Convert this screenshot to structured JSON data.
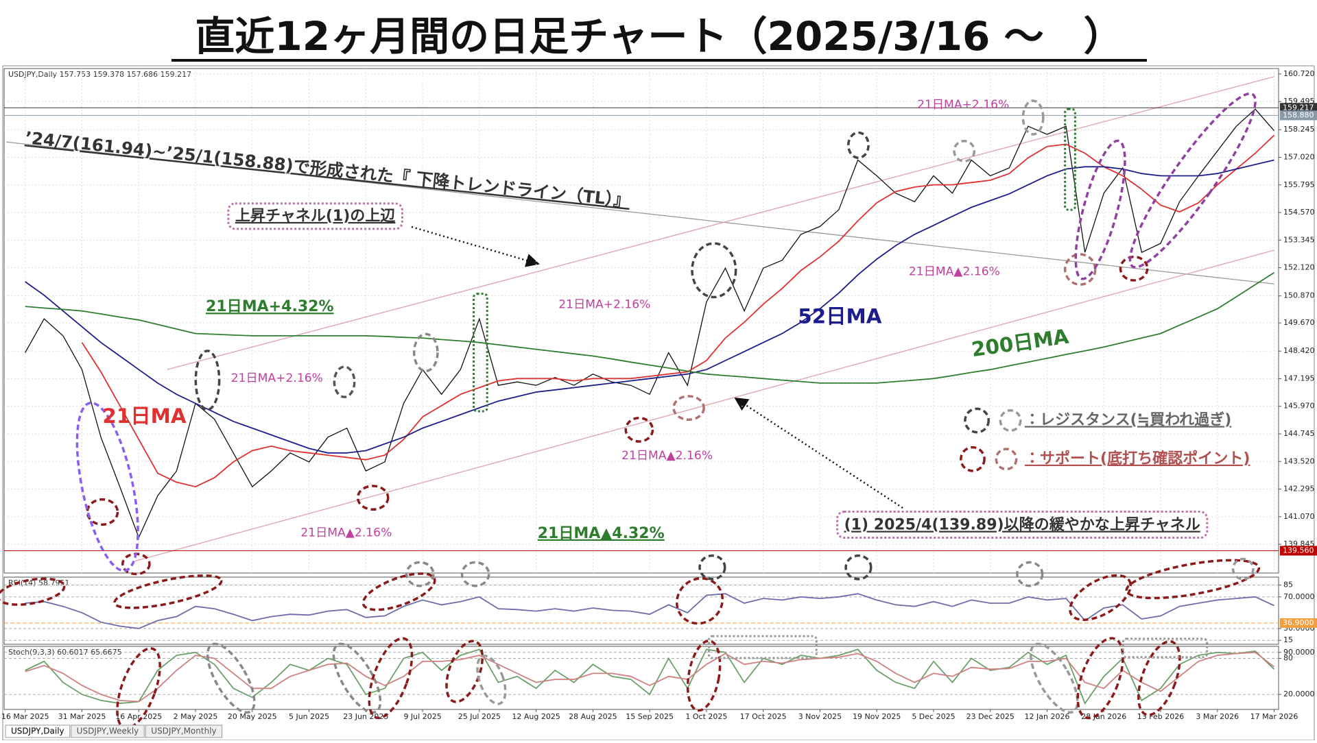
{
  "title": "直近12ヶ月間の日足チャート（2025/3/16 ～　）",
  "tabs": [
    "USDJPY,Daily",
    "USDJPY,Weekly",
    "USDJPY,Monthly"
  ],
  "chart_data": [
    {
      "type": "line",
      "header": "USDJPY,Daily  157.753 159.378 157.686 159.217",
      "categories": [
        "16 Mar 2025",
        null,
        null,
        "31 Mar 2025",
        null,
        null,
        "16 Apr 2025",
        null,
        null,
        "2 May 2025",
        null,
        null,
        "20 May 2025",
        null,
        null,
        "5 Jun 2025",
        null,
        null,
        "23 Jun 2025",
        null,
        null,
        "9 Jul 2025",
        null,
        null,
        "25 Jul 2025",
        null,
        null,
        "12 Aug 2025",
        null,
        null,
        "28 Aug 2025",
        null,
        null,
        "15 Sep 2025",
        null,
        null,
        "1 Oct 2025",
        null,
        null,
        "17 Oct 2025",
        null,
        null,
        "3 Nov 2025",
        null,
        null,
        "19 Nov 2025",
        null,
        null,
        "5 Dec 2025",
        null,
        null,
        "23 Dec 2025",
        null,
        null,
        "12 Jan 2026",
        null,
        null,
        "28 Jan 2026",
        null,
        null,
        "13 Feb 2026",
        null,
        null,
        "3 Mar 2026",
        null,
        null,
        "17 Mar 2026"
      ],
      "series": [
        {
          "color": "#111111",
          "values": [
            148.35,
            149.85,
            149.1,
            147.6,
            144.6,
            142.4,
            140.15,
            142.0,
            143.1,
            146.1,
            145.4,
            143.9,
            142.4,
            143.1,
            143.9,
            143.5,
            144.6,
            145.0,
            143.1,
            143.5,
            146.1,
            147.6,
            146.5,
            147.6,
            149.85,
            146.9,
            147.05,
            146.9,
            147.25,
            146.9,
            147.4,
            147.05,
            146.9,
            146.5,
            148.35,
            146.9,
            150.6,
            152.1,
            150.2,
            152.1,
            152.45,
            153.6,
            153.95,
            154.7,
            156.9,
            156.2,
            155.43,
            155.05,
            156.2,
            155.43,
            156.9,
            156.2,
            156.55,
            158.4,
            158.04,
            158.4,
            152.8,
            155.43,
            156.55,
            152.8,
            153.2,
            155.05,
            156.2,
            157.3,
            158.4,
            159.16,
            158.2
          ]
        },
        {
          "name": "21日MA",
          "color": "#e03030",
          "values": [
            null,
            null,
            null,
            148.8,
            147.5,
            146.0,
            144.5,
            143.0,
            142.6,
            142.4,
            142.8,
            143.5,
            144.0,
            144.2,
            144.0,
            143.9,
            143.8,
            143.7,
            143.6,
            143.8,
            144.5,
            145.5,
            146.0,
            146.5,
            146.8,
            147.1,
            147.2,
            147.2,
            147.2,
            147.1,
            147.2,
            147.2,
            147.2,
            147.3,
            147.4,
            147.5,
            148.0,
            149.0,
            149.7,
            150.5,
            151.2,
            152.0,
            152.6,
            153.3,
            154.2,
            155.0,
            155.5,
            155.7,
            155.8,
            155.8,
            155.9,
            156.0,
            156.3,
            157.0,
            157.5,
            157.6,
            157.2,
            156.6,
            156.2,
            155.6,
            154.9,
            154.6,
            155.0,
            155.8,
            156.5,
            157.2,
            158.0
          ]
        },
        {
          "name": "52日MA",
          "color": "#1c1c8c",
          "values": [
            151.5,
            150.9,
            150.2,
            149.5,
            148.8,
            148.2,
            147.6,
            147.0,
            146.5,
            146.1,
            145.7,
            145.3,
            145.0,
            144.7,
            144.4,
            144.1,
            143.9,
            143.9,
            144.0,
            144.3,
            144.6,
            145.0,
            145.3,
            145.6,
            145.9,
            146.2,
            146.4,
            146.6,
            146.7,
            146.8,
            146.9,
            147.0,
            147.1,
            147.2,
            147.3,
            147.4,
            147.6,
            148.0,
            148.4,
            148.8,
            149.2,
            149.7,
            150.3,
            151.0,
            151.8,
            152.5,
            153.1,
            153.6,
            154.0,
            154.4,
            154.8,
            155.1,
            155.4,
            155.8,
            156.2,
            156.5,
            156.6,
            156.6,
            156.5,
            156.3,
            156.2,
            156.2,
            156.2,
            156.3,
            156.5,
            156.7,
            156.9
          ]
        },
        {
          "name": "200日MA",
          "color": "#2e7d2e",
          "values": [
            150.4,
            150.33,
            150.27,
            150.2,
            150.07,
            149.93,
            149.8,
            149.6,
            149.4,
            149.2,
            149.17,
            149.13,
            149.1,
            149.1,
            149.1,
            149.1,
            149.1,
            149.1,
            149.1,
            149.07,
            149.03,
            149.0,
            148.93,
            148.87,
            148.8,
            148.7,
            148.6,
            148.5,
            148.4,
            148.3,
            148.2,
            148.07,
            147.93,
            147.8,
            147.67,
            147.53,
            147.4,
            147.33,
            147.27,
            147.2,
            147.13,
            147.07,
            147.0,
            147.0,
            147.0,
            147.0,
            147.07,
            147.13,
            147.2,
            147.33,
            147.47,
            147.6,
            147.77,
            147.93,
            148.1,
            148.27,
            148.43,
            148.6,
            148.8,
            149.0,
            149.2,
            149.57,
            149.93,
            150.3,
            150.83,
            151.37,
            151.9
          ]
        }
      ],
      "lines": [
        {
          "color": "#999999",
          "x": [
            -1,
            66
          ],
          "y": [
            157.7,
            151.4
          ]
        },
        {
          "color": "#e0a0b0",
          "x": [
            7.5,
            66
          ],
          "y": [
            147.6,
            160.6
          ]
        },
        {
          "color": "#e0a0b0",
          "x": [
            5.8,
            66
          ],
          "y": [
            139.1,
            152.9
          ]
        }
      ],
      "levels": [
        {
          "value": 159.217,
          "label": "159.217",
          "color": "#333333"
        },
        {
          "value": 158.88,
          "label": "158.880",
          "color": "#8899aa"
        },
        {
          "value": 139.56,
          "label": "139.560",
          "color": "#c00000"
        }
      ],
      "ylim": [
        138.57,
        160.96
      ],
      "yticks": [
        {
          "value": 160.72,
          "label": "160.720"
        },
        159.495,
        158.245,
        {
          "value": 157.02,
          "label": "157.020"
        },
        155.795,
        {
          "value": 154.57,
          "label": "154.570"
        },
        153.345,
        {
          "value": 152.12,
          "label": "152.120"
        },
        {
          "value": 150.87,
          "label": "150.870"
        },
        {
          "value": 149.67,
          "label": "149.670"
        },
        {
          "value": 148.42,
          "label": "148.420"
        },
        147.195,
        {
          "value": 145.97,
          "label": "145.970"
        },
        144.745,
        {
          "value": 143.52,
          "label": "143.520"
        },
        142.295,
        {
          "value": 141.07,
          "label": "141.070"
        },
        139.845
      ],
      "grid": true,
      "annotations": [
        {
          "text": "’24/7(161.94)~’25/1(158.88)で形成された『 下降トレンドライン（TL）』",
          "color": "#333333"
        },
        {
          "text": "上昇チャネル(1)の上辺",
          "color": "#333333"
        },
        {
          "text": "21日MA+4.32%",
          "color": "#2e7d2e"
        },
        {
          "text": "21日MA+2.16%",
          "color": "#c040a0"
        },
        {
          "text": "21日MA+2.16%",
          "color": "#c040a0"
        },
        {
          "text": "21日MA+2.16%",
          "color": "#c040a0"
        },
        {
          "text": "21日MA▲2.16%",
          "color": "#c040a0"
        },
        {
          "text": "21日MA▲2.16%",
          "color": "#c040a0"
        },
        {
          "text": "21日MA▲2.16%",
          "color": "#c040a0"
        },
        {
          "text": "21日MA▲4.32%",
          "color": "#2e7d2e"
        },
        {
          "text": "(1) 2025/4(139.89)以降の緩やかな上昇チャネル",
          "color": "#333333"
        },
        {
          "text": "：レジスタンス(≒買われ過ぎ)",
          "color": "#666666"
        },
        {
          "text": "：サポート(底打ち確認ポイント)",
          "color": "#b05050"
        }
      ]
    },
    {
      "type": "line",
      "header": "RSI(14) 58.7951",
      "series": [
        {
          "color": "#6c6caa",
          "values": [
            62,
            64,
            58,
            50,
            38,
            33,
            30,
            40,
            45,
            58,
            55,
            48,
            40,
            45,
            48,
            47,
            52,
            54,
            44,
            46,
            58,
            66,
            60,
            64,
            70,
            55,
            54,
            52,
            55,
            52,
            56,
            53,
            52,
            48,
            60,
            50,
            72,
            74,
            62,
            68,
            66,
            70,
            68,
            70,
            74,
            66,
            60,
            58,
            64,
            58,
            66,
            62,
            62,
            70,
            66,
            68,
            40,
            56,
            60,
            42,
            46,
            58,
            62,
            66,
            68,
            70,
            59
          ]
        }
      ],
      "levels": [
        {
          "value": 36.9,
          "label": "36.9000",
          "color": "#f0a040"
        }
      ],
      "ylim": [
        10,
        95
      ],
      "yticks": [
        85,
        {
          "value": 70,
          "label": "70.0000"
        },
        {
          "value": 30,
          "label": "30.0000"
        },
        15
      ]
    },
    {
      "type": "line",
      "header": "Stoch(9,3,3) 60.6017 65.6675",
      "series": [
        {
          "color": "#6aa06a",
          "values": [
            60,
            75,
            40,
            20,
            10,
            5,
            8,
            60,
            85,
            90,
            70,
            30,
            15,
            40,
            70,
            60,
            80,
            70,
            20,
            30,
            80,
            90,
            60,
            85,
            95,
            40,
            50,
            30,
            60,
            40,
            70,
            50,
            45,
            20,
            80,
            30,
            95,
            90,
            40,
            80,
            70,
            85,
            80,
            85,
            95,
            60,
            40,
            30,
            75,
            40,
            80,
            60,
            65,
            90,
            70,
            85,
            5,
            50,
            80,
            10,
            30,
            70,
            85,
            90,
            88,
            92,
            62
          ]
        },
        {
          "color": "#d08080",
          "values": [
            58,
            68,
            55,
            35,
            20,
            10,
            8,
            30,
            60,
            85,
            80,
            55,
            30,
            30,
            50,
            60,
            70,
            72,
            50,
            35,
            50,
            75,
            75,
            78,
            85,
            70,
            55,
            40,
            45,
            45,
            55,
            55,
            50,
            35,
            50,
            45,
            70,
            88,
            70,
            75,
            72,
            78,
            80,
            82,
            88,
            75,
            55,
            40,
            55,
            50,
            65,
            62,
            63,
            75,
            75,
            80,
            40,
            30,
            60,
            40,
            25,
            50,
            75,
            85,
            88,
            90,
            66
          ]
        }
      ],
      "ylim": [
        -5,
        100
      ],
      "yticks": [
        {
          "value": 90,
          "label": "90.0000"
        },
        80,
        {
          "value": 20,
          "label": "20.0000"
        }
      ]
    }
  ]
}
